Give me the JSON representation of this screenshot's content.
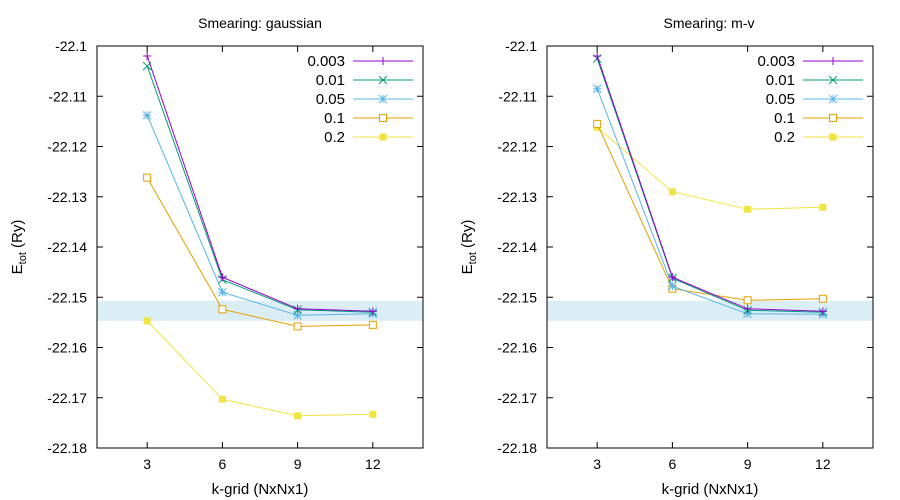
{
  "chart_data": [
    {
      "type": "line",
      "title": "Smearing: gaussian",
      "xlabel": "k-grid (NxNx1)",
      "ylabel_main": "E",
      "ylabel_sub": "tot",
      "ylabel_unit": " (Ry)",
      "x": [
        3,
        6,
        9,
        12
      ],
      "xlim": [
        1,
        14
      ],
      "ylim": [
        -22.18,
        -22.1
      ],
      "yticks": [
        -22.1,
        -22.11,
        -22.12,
        -22.13,
        -22.14,
        -22.15,
        -22.16,
        -22.17,
        -22.18
      ],
      "ytick_labels": [
        "-22.1",
        "-22.11",
        "-22.12",
        "-22.13",
        "-22.14",
        "-22.15",
        "-22.16",
        "-22.17",
        "-22.18"
      ],
      "xtick_labels": [
        "3",
        "6",
        "9",
        "12"
      ],
      "band": [
        -22.1547,
        -22.1507
      ],
      "band_color": "#dbeef5",
      "legend_position": "top-right",
      "series": [
        {
          "name": "0.003",
          "marker": "plus",
          "color": "#9400d3",
          "values": [
            -22.102,
            -22.146,
            -22.1523,
            -22.1528
          ]
        },
        {
          "name": "0.01",
          "marker": "cross",
          "color": "#009e73",
          "values": [
            -22.104,
            -22.1465,
            -22.1525,
            -22.153
          ]
        },
        {
          "name": "0.05",
          "marker": "star",
          "color": "#56b4e9",
          "values": [
            -22.1138,
            -22.149,
            -22.1536,
            -22.1533
          ]
        },
        {
          "name": "0.1",
          "marker": "square-open",
          "color": "#e69f00",
          "values": [
            -22.1262,
            -22.1524,
            -22.1558,
            -22.1555
          ]
        },
        {
          "name": "0.2",
          "marker": "square-filled",
          "color": "#f0e442",
          "values": [
            -22.1547,
            -22.1703,
            -22.1736,
            -22.1733
          ]
        }
      ]
    },
    {
      "type": "line",
      "title": "Smearing: m-v",
      "xlabel": "k-grid (NxNx1)",
      "ylabel_main": "E",
      "ylabel_sub": "tot",
      "ylabel_unit": " (Ry)",
      "x": [
        3,
        6,
        9,
        12
      ],
      "xlim": [
        1,
        14
      ],
      "ylim": [
        -22.18,
        -22.1
      ],
      "yticks": [
        -22.1,
        -22.11,
        -22.12,
        -22.13,
        -22.14,
        -22.15,
        -22.16,
        -22.17,
        -22.18
      ],
      "ytick_labels": [
        "-22.1",
        "-22.11",
        "-22.12",
        "-22.13",
        "-22.14",
        "-22.15",
        "-22.16",
        "-22.17",
        "-22.18"
      ],
      "xtick_labels": [
        "3",
        "6",
        "9",
        "12"
      ],
      "band": [
        -22.1547,
        -22.1507
      ],
      "band_color": "#dbeef5",
      "legend_position": "top-right",
      "series": [
        {
          "name": "0.003",
          "marker": "plus",
          "color": "#9400d3",
          "values": [
            -22.102,
            -22.146,
            -22.1523,
            -22.1528
          ]
        },
        {
          "name": "0.01",
          "marker": "cross",
          "color": "#009e73",
          "values": [
            -22.1025,
            -22.1462,
            -22.1526,
            -22.153
          ]
        },
        {
          "name": "0.05",
          "marker": "star",
          "color": "#56b4e9",
          "values": [
            -22.1085,
            -22.1478,
            -22.1533,
            -22.1534
          ]
        },
        {
          "name": "0.1",
          "marker": "square-open",
          "color": "#e69f00",
          "values": [
            -22.1155,
            -22.1483,
            -22.1506,
            -22.1503
          ]
        },
        {
          "name": "0.2",
          "marker": "square-filled",
          "color": "#f0e442",
          "values": [
            -22.1162,
            -22.129,
            -22.1325,
            -22.1321
          ]
        }
      ]
    }
  ]
}
